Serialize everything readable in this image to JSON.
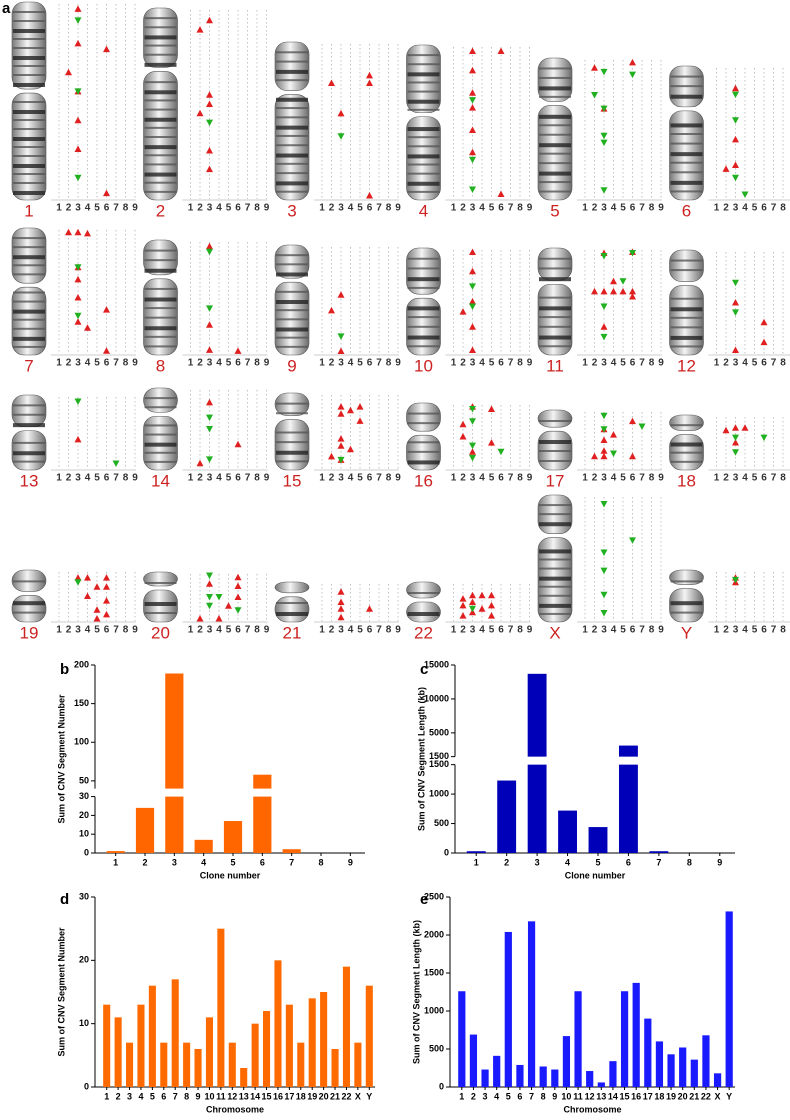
{
  "panel_labels": [
    "a",
    "b",
    "c",
    "d",
    "e"
  ],
  "karyogram": {
    "clones": [
      1,
      2,
      3,
      4,
      5,
      6,
      7,
      8,
      9
    ],
    "chromosomes": [
      "1",
      "2",
      "3",
      "4",
      "5",
      "6",
      "7",
      "8",
      "9",
      "10",
      "11",
      "12",
      "13",
      "14",
      "15",
      "16",
      "17",
      "18",
      "19",
      "20",
      "21",
      "22",
      "X",
      "Y"
    ],
    "events": [
      {
        "gains": [
          [
            3,
            0.02
          ],
          [
            3,
            0.2
          ],
          [
            3,
            0.45
          ],
          [
            3,
            0.6
          ],
          [
            3,
            0.75
          ],
          [
            6,
            0.23
          ],
          [
            2,
            0.35
          ],
          [
            6,
            0.98
          ]
        ],
        "losses": [
          [
            3,
            0.08
          ],
          [
            3,
            0.45
          ],
          [
            3,
            0.9
          ]
        ]
      },
      {
        "gains": [
          [
            2,
            0.1
          ],
          [
            3,
            0.05
          ],
          [
            3,
            0.45
          ],
          [
            3,
            0.5
          ],
          [
            2,
            0.55
          ],
          [
            3,
            0.75
          ],
          [
            3,
            0.85
          ]
        ],
        "losses": [
          [
            3,
            0.6
          ]
        ]
      },
      {
        "gains": [
          [
            2,
            0.25
          ],
          [
            3,
            0.45
          ],
          [
            6,
            0.2
          ],
          [
            6,
            0.25
          ],
          [
            6,
            0.99
          ]
        ],
        "losses": [
          [
            3,
            0.6
          ]
        ]
      },
      {
        "gains": [
          [
            3,
            0.02
          ],
          [
            3,
            0.15
          ],
          [
            3,
            0.3
          ],
          [
            3,
            0.4
          ],
          [
            3,
            0.55
          ],
          [
            3,
            0.7
          ],
          [
            6,
            0.02
          ],
          [
            6,
            0.98
          ]
        ],
        "losses": [
          [
            3,
            0.35
          ],
          [
            3,
            0.75
          ],
          [
            3,
            0.95
          ]
        ]
      },
      {
        "gains": [
          [
            2,
            0.05
          ],
          [
            3,
            0.35
          ],
          [
            6,
            0.01
          ]
        ],
        "losses": [
          [
            3,
            0.08
          ],
          [
            6,
            0.1
          ],
          [
            2,
            0.25
          ],
          [
            3,
            0.35
          ],
          [
            3,
            0.55
          ],
          [
            3,
            0.6
          ],
          [
            3,
            0.95
          ]
        ]
      },
      {
        "gains": [
          [
            3,
            0.15
          ],
          [
            2,
            0.78
          ],
          [
            3,
            0.55
          ],
          [
            3,
            0.75
          ]
        ],
        "losses": [
          [
            3,
            0.2
          ],
          [
            3,
            0.4
          ],
          [
            3,
            0.85
          ],
          [
            4,
            0.98
          ]
        ]
      },
      {
        "gains": [
          [
            2,
            0.01
          ],
          [
            3,
            0.01
          ],
          [
            4,
            0.02
          ],
          [
            3,
            0.3
          ],
          [
            3,
            0.4
          ],
          [
            3,
            0.55
          ],
          [
            3,
            0.75
          ],
          [
            4,
            0.8
          ],
          [
            6,
            0.65
          ],
          [
            6,
            0.99
          ]
        ],
        "losses": [
          [
            3,
            0.3
          ],
          [
            3,
            0.7
          ]
        ]
      },
      {
        "gains": [
          [
            3,
            0.03
          ],
          [
            3,
            0.75
          ],
          [
            3,
            0.98
          ],
          [
            6,
            0.99
          ]
        ],
        "losses": [
          [
            3,
            0.08
          ],
          [
            3,
            0.6
          ]
        ]
      },
      {
        "gains": [
          [
            2,
            0.6
          ],
          [
            3,
            0.45
          ],
          [
            3,
            0.99
          ]
        ],
        "losses": [
          [
            3,
            0.85
          ]
        ]
      },
      {
        "gains": [
          [
            3,
            0.01
          ],
          [
            3,
            0.2
          ],
          [
            3,
            0.5
          ],
          [
            2,
            0.6
          ],
          [
            3,
            0.75
          ],
          [
            3,
            0.98
          ]
        ],
        "losses": [
          [
            3,
            0.35
          ],
          [
            3,
            0.55
          ]
        ]
      },
      {
        "gains": [
          [
            3,
            0.02
          ],
          [
            6,
            0.01
          ],
          [
            2,
            0.4
          ],
          [
            3,
            0.4
          ],
          [
            4,
            0.4
          ],
          [
            5,
            0.4
          ],
          [
            6,
            0.4
          ],
          [
            6,
            0.45
          ],
          [
            4,
            0.3
          ],
          [
            3,
            0.75
          ]
        ],
        "losses": [
          [
            3,
            0.05
          ],
          [
            5,
            0.3
          ],
          [
            3,
            0.55
          ],
          [
            3,
            0.85
          ],
          [
            6,
            0.02
          ]
        ]
      },
      {
        "gains": [
          [
            3,
            0.5
          ],
          [
            3,
            0.98
          ],
          [
            6,
            0.7
          ],
          [
            6,
            0.9
          ]
        ],
        "losses": [
          [
            3,
            0.3
          ],
          [
            3,
            0.6
          ]
        ]
      },
      {
        "gains": [
          [
            3,
            0.6
          ]
        ],
        "losses": [
          [
            3,
            0.05
          ],
          [
            7,
            0.95
          ]
        ]
      },
      {
        "gains": [
          [
            3,
            0.15
          ],
          [
            2,
            0.95
          ],
          [
            6,
            0.7
          ]
        ],
        "losses": [
          [
            3,
            0.35
          ],
          [
            3,
            0.5
          ],
          [
            3,
            0.9
          ]
        ]
      },
      {
        "gains": [
          [
            3,
            0.15
          ],
          [
            3,
            0.25
          ],
          [
            4,
            0.2
          ],
          [
            5,
            0.15
          ],
          [
            5,
            0.35
          ],
          [
            3,
            0.6
          ],
          [
            3,
            0.7
          ],
          [
            2,
            0.85
          ],
          [
            4,
            0.75
          ],
          [
            3,
            0.9
          ]
        ],
        "losses": [
          [
            3,
            0.9
          ]
        ]
      },
      {
        "gains": [
          [
            3,
            0.01
          ],
          [
            2,
            0.3
          ],
          [
            2,
            0.5
          ],
          [
            3,
            0.75
          ],
          [
            5,
            0.05
          ],
          [
            5,
            0.6
          ]
        ],
        "losses": [
          [
            3,
            0.05
          ],
          [
            3,
            0.25
          ],
          [
            3,
            0.65
          ],
          [
            3,
            0.85
          ],
          [
            6,
            0.75
          ]
        ]
      },
      {
        "gains": [
          [
            3,
            0.3
          ],
          [
            3,
            0.5
          ],
          [
            3,
            0.7
          ],
          [
            3,
            0.8
          ],
          [
            6,
            0.15
          ],
          [
            6,
            0.8
          ],
          [
            4,
            0.4
          ],
          [
            2,
            0.8
          ]
        ],
        "losses": [
          [
            3,
            0.05
          ],
          [
            3,
            0.3
          ],
          [
            7,
            0.25
          ],
          [
            4,
            0.75
          ]
        ]
      },
      {
        "gains": [
          [
            3,
            0.2
          ],
          [
            3,
            0.5
          ],
          [
            4,
            0.2
          ],
          [
            2,
            0.25
          ]
        ],
        "losses": [
          [
            3,
            0.4
          ],
          [
            3,
            0.7
          ],
          [
            6,
            0.4
          ]
        ]
      },
      {
        "gains": [
          [
            3,
            0.1
          ],
          [
            4,
            0.1
          ],
          [
            5,
            0.3
          ],
          [
            5,
            0.8
          ],
          [
            6,
            0.1
          ],
          [
            6,
            0.3
          ],
          [
            6,
            0.6
          ],
          [
            6,
            0.9
          ],
          [
            5,
            0.99
          ],
          [
            4,
            0.5
          ]
        ],
        "losses": [
          [
            3,
            0.2
          ]
        ]
      },
      {
        "gains": [
          [
            3,
            0.2
          ],
          [
            2,
            0.99
          ],
          [
            6,
            0.05
          ],
          [
            6,
            0.25
          ],
          [
            6,
            0.5
          ],
          [
            5,
            0.7
          ],
          [
            4,
            0.99
          ]
        ],
        "losses": [
          [
            3,
            0.01
          ],
          [
            3,
            0.5
          ],
          [
            4,
            0.5
          ],
          [
            3,
            0.7
          ],
          [
            6,
            0.8
          ]
        ]
      },
      {
        "gains": [
          [
            3,
            0.2
          ],
          [
            3,
            0.5
          ],
          [
            3,
            0.7
          ],
          [
            3,
            0.95
          ],
          [
            6,
            0.7
          ]
        ],
        "losses": []
      },
      {
        "gains": [
          [
            2,
            0.4
          ],
          [
            2,
            0.6
          ],
          [
            2,
            0.9
          ],
          [
            3,
            0.3
          ],
          [
            3,
            0.5
          ],
          [
            3,
            0.8
          ],
          [
            4,
            0.3
          ],
          [
            4,
            0.7
          ],
          [
            5,
            0.3
          ],
          [
            5,
            0.6
          ],
          [
            5,
            0.9
          ]
        ],
        "losses": [
          [
            3,
            0.7
          ]
        ]
      },
      {
        "gains": [],
        "losses": [
          [
            3,
            0.05
          ],
          [
            3,
            0.45
          ],
          [
            3,
            0.6
          ],
          [
            3,
            0.8
          ],
          [
            3,
            0.95
          ],
          [
            6,
            0.35
          ]
        ]
      },
      {
        "gains": [
          [
            3,
            0.1
          ],
          [
            3,
            0.2
          ]
        ],
        "losses": [
          [
            3,
            0.15
          ]
        ]
      }
    ],
    "gain_color": "#e02020",
    "loss_color": "#20b020",
    "label_color": "#cc2222"
  },
  "chart_data": [
    {
      "type": "bar",
      "broken_axis": true,
      "color": "#ff6600",
      "ylabel": "Sum of CNV Segment Number",
      "xlabel": "Clone number",
      "categories": [
        "1",
        "2",
        "3",
        "4",
        "5",
        "6",
        "7",
        "8",
        "9"
      ],
      "values": [
        1,
        24,
        189,
        7,
        17,
        58,
        2,
        0,
        0
      ],
      "ylim_lower": [
        0,
        30
      ],
      "ylim_upper": [
        40,
        200
      ],
      "yticks_lower": [
        0,
        10,
        20,
        30
      ],
      "yticks_upper": [
        50,
        100,
        150,
        200
      ]
    },
    {
      "type": "bar",
      "broken_axis": true,
      "color": "#0000b8",
      "ylabel": "Sum of CNV Segment Length (kb)",
      "xlabel": "Clone number",
      "categories": [
        "1",
        "2",
        "3",
        "4",
        "5",
        "6",
        "7",
        "8",
        "9"
      ],
      "values": [
        30,
        1230,
        13700,
        720,
        440,
        3130,
        30,
        0,
        0
      ],
      "ylim_lower": [
        0,
        1500
      ],
      "ylim_upper": [
        1500,
        15000
      ],
      "yticks_lower": [
        0,
        500,
        1000,
        1500
      ],
      "yticks_upper": [
        1500,
        5000,
        10000,
        15000
      ]
    },
    {
      "type": "bar",
      "color": "#ff6a00",
      "ylabel": "Sum of CNV Segment Number",
      "xlabel": "Chromosome",
      "categories": [
        "1",
        "2",
        "3",
        "4",
        "5",
        "6",
        "7",
        "8",
        "9",
        "10",
        "11",
        "12",
        "13",
        "14",
        "15",
        "16",
        "17",
        "18",
        "19",
        "20",
        "21",
        "22",
        "X",
        "Y"
      ],
      "values": [
        13,
        11,
        7,
        13,
        16,
        7,
        17,
        7,
        6,
        11,
        25,
        7,
        3,
        10,
        12,
        20,
        13,
        7,
        14,
        15,
        6,
        19,
        7,
        16
      ],
      "ylim": [
        0,
        30
      ],
      "yticks": [
        0,
        10,
        20,
        30
      ]
    },
    {
      "type": "bar",
      "color": "#1a1aff",
      "ylabel": "Sum of CNV Segment Length (kb)",
      "xlabel": "Chromosome",
      "categories": [
        "1",
        "2",
        "3",
        "4",
        "5",
        "6",
        "7",
        "8",
        "9",
        "10",
        "11",
        "12",
        "13",
        "14",
        "15",
        "16",
        "17",
        "18",
        "19",
        "20",
        "21",
        "22",
        "X",
        "Y"
      ],
      "values": [
        1260,
        690,
        230,
        410,
        2040,
        290,
        2180,
        270,
        230,
        670,
        1260,
        210,
        60,
        340,
        1260,
        1370,
        900,
        600,
        430,
        520,
        360,
        680,
        180,
        2310
      ],
      "ylim": [
        0,
        2500
      ],
      "yticks": [
        0,
        500,
        1000,
        1500,
        2000,
        2500
      ]
    }
  ]
}
